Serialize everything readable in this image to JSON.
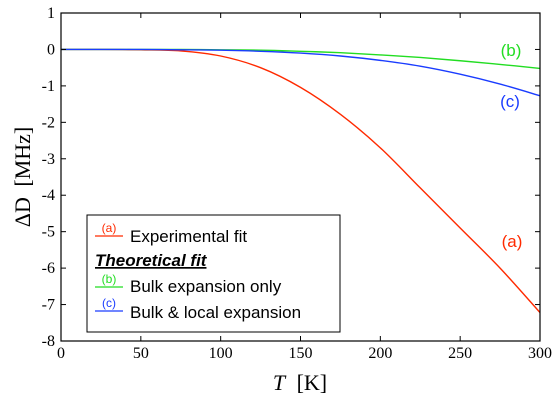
{
  "chart_data": {
    "type": "line",
    "xlabel_var": "T",
    "xlabel_unit": "[K]",
    "ylabel_var": "ΔD",
    "ylabel_unit": "[MHz]",
    "xlim": [
      0,
      300
    ],
    "ylim": [
      -8,
      1
    ],
    "x_ticks": [
      0,
      50,
      100,
      150,
      200,
      250,
      300
    ],
    "y_ticks": [
      1,
      0,
      -1,
      -2,
      -3,
      -4,
      -5,
      -6,
      -7,
      -8
    ],
    "grid": false,
    "legend_position": "bottom-left",
    "series": [
      {
        "key": "a",
        "curve_label": "(a)",
        "legend_tag": "(a)",
        "legend_text": "Experimental fit",
        "color": "#ff2a00",
        "x": [
          0,
          25,
          50,
          75,
          100,
          125,
          150,
          175,
          200,
          225,
          250,
          275,
          300
        ],
        "y": [
          0,
          0,
          -0.01,
          -0.04,
          -0.18,
          -0.5,
          -1.04,
          -1.78,
          -2.7,
          -3.8,
          -4.9,
          -6.0,
          -7.22
        ]
      },
      {
        "key": "b",
        "curve_label": "(b)",
        "legend_tag": "(b)",
        "legend_text": "Bulk expansion only",
        "color": "#22dd22",
        "x": [
          0,
          25,
          50,
          75,
          100,
          125,
          150,
          175,
          200,
          225,
          250,
          275,
          300
        ],
        "y": [
          0,
          0,
          0,
          0,
          -0.01,
          -0.02,
          -0.05,
          -0.09,
          -0.15,
          -0.22,
          -0.31,
          -0.41,
          -0.52
        ]
      },
      {
        "key": "c",
        "curve_label": "(c)",
        "legend_tag": "(c)",
        "legend_text": "Bulk & local expansion",
        "color": "#1a3cff",
        "x": [
          0,
          25,
          50,
          75,
          100,
          125,
          150,
          175,
          200,
          225,
          250,
          275,
          300
        ],
        "y": [
          0,
          0,
          0,
          -0.01,
          -0.02,
          -0.05,
          -0.1,
          -0.18,
          -0.3,
          -0.46,
          -0.68,
          -0.95,
          -1.27
        ]
      }
    ],
    "legend_group_title": "Theoretical fit"
  }
}
